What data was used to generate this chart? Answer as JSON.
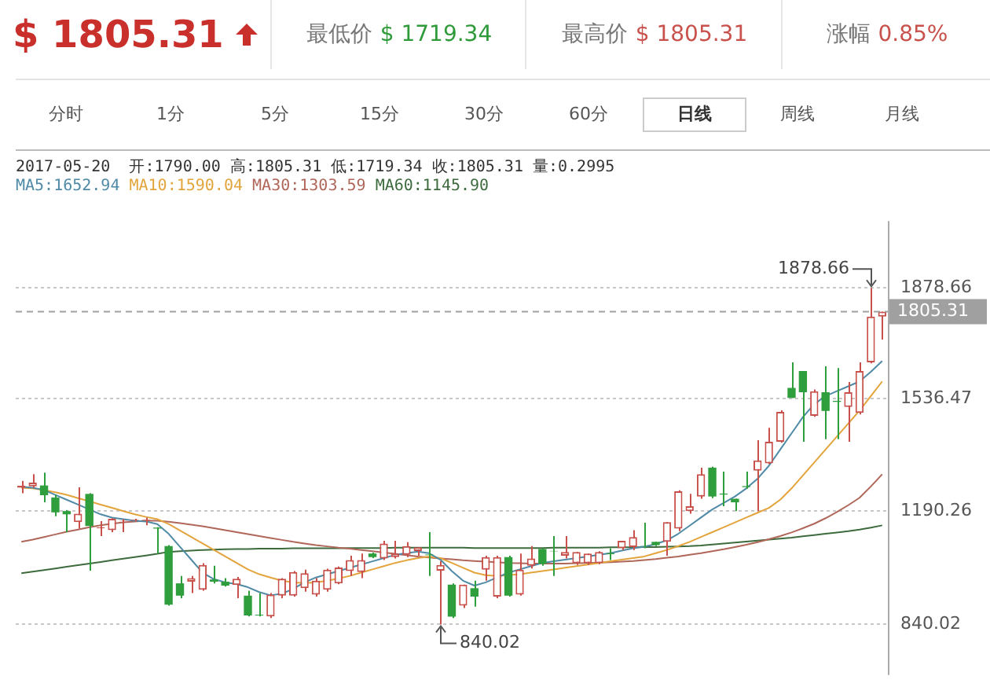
{
  "chart_data": {
    "type": "candlestick",
    "title": "$ 1805.31",
    "subtitle": "2017-05-20  开:1790.00 高:1805.31 低:1719.34 收:1805.31 量:0.2995",
    "annotations": [
      "最低价",
      "$ 1719.34",
      "最高价",
      "$ 1805.31",
      "涨幅",
      "0.85%",
      "分时",
      "1分",
      "5分",
      "15分",
      "30分",
      "60分",
      "日线",
      "周线",
      "月线",
      "1878.66",
      "840.02"
    ],
    "categories": [
      null,
      null,
      null,
      null,
      null,
      null,
      null,
      null,
      null,
      null,
      null,
      null,
      null,
      null,
      null,
      null,
      null,
      null,
      null,
      null,
      null,
      null,
      null,
      null,
      null,
      null,
      null,
      null,
      null,
      null,
      null,
      null,
      null,
      null,
      null,
      null,
      null,
      null,
      null,
      null,
      null,
      null,
      null,
      null,
      null,
      null,
      null,
      null,
      null,
      null,
      null,
      null,
      null,
      null,
      null,
      null,
      null,
      null,
      null,
      null,
      null,
      null,
      null,
      null,
      null,
      null,
      null,
      null,
      null,
      null,
      null,
      null,
      null,
      null,
      null,
      null,
      null
    ],
    "series": [
      {
        "ohlc": [
          [
            1262,
            1283,
            1245,
            1268
          ],
          [
            1266,
            1304,
            1262,
            1278
          ],
          [
            1269,
            1309,
            1217,
            1239
          ],
          [
            1232,
            1240,
            1174,
            1186
          ],
          [
            1190,
            1193,
            1125,
            1180
          ],
          [
            1156,
            1263,
            1136,
            1182
          ],
          [
            1243,
            1245,
            1006,
            1144
          ],
          [
            1137,
            1159,
            1113,
            1140
          ],
          [
            1131,
            1168,
            1125,
            1166
          ],
          [
            1160,
            1165,
            1125,
            1162
          ],
          [
            1161,
            1166,
            1158,
            1163
          ],
          [
            1160,
            1170,
            1146,
            1163
          ],
          [
            1139,
            1140,
            1059,
            1136
          ],
          [
            1082,
            1085,
            898,
            901
          ],
          [
            967,
            990,
            921,
            929
          ],
          [
            972,
            990,
            937,
            983
          ],
          [
            947,
            1029,
            944,
            1024
          ],
          [
            979,
            1021,
            967,
            972
          ],
          [
            972,
            983,
            957,
            960
          ],
          [
            962,
            987,
            921,
            981
          ],
          [
            929,
            944,
            865,
            868
          ],
          [
            870,
            937,
            865,
            868
          ],
          [
            865,
            937,
            860,
            932
          ],
          [
            929,
            983,
            921,
            981
          ],
          [
            929,
            1005,
            926,
            1002
          ],
          [
            952,
            1009,
            941,
            998
          ],
          [
            932,
            983,
            926,
            975
          ],
          [
            947,
            1012,
            941,
            1009
          ],
          [
            967,
            1019,
            964,
            1016
          ],
          [
            1005,
            1052,
            990,
            1039
          ],
          [
            1002,
            1059,
            983,
            1039
          ],
          [
            1059,
            1062,
            1045,
            1048
          ],
          [
            1044,
            1098,
            1039,
            1090
          ],
          [
            1048,
            1098,
            1044,
            1059
          ],
          [
            1055,
            1094,
            1048,
            1082
          ],
          [
            1067,
            1078,
            1052,
            1078
          ],
          [
            1056,
            1125,
            990,
            1054
          ],
          [
            1006,
            1036,
            840.02,
            1024
          ],
          [
            963,
            967,
            860,
            864
          ],
          [
            898,
            963,
            891,
            963
          ],
          [
            952,
            975,
            895,
            926
          ],
          [
            1009,
            1052,
            975,
            1048
          ],
          [
            926,
            1052,
            921,
            1048
          ],
          [
            1048,
            1052,
            926,
            929
          ],
          [
            932,
            1059,
            929,
            1009
          ],
          [
            1021,
            1082,
            1013,
            1044
          ],
          [
            1073,
            1075,
            1021,
            1027
          ],
          [
            1067,
            1113,
            990,
            1066
          ],
          [
            1052,
            1113,
            1044,
            1064
          ],
          [
            1029,
            1064,
            1024,
            1064
          ],
          [
            1029,
            1059,
            1024,
            1059
          ],
          [
            1029,
            1066,
            1026,
            1064
          ],
          [
            1060,
            1075,
            1039,
            1057
          ],
          [
            1075,
            1098,
            1070,
            1098
          ],
          [
            1079,
            1131,
            1070,
            1110
          ],
          [
            1083,
            1154,
            1075,
            1082
          ],
          [
            1095,
            1095,
            1082,
            1085
          ],
          [
            1095,
            1156,
            1052,
            1156
          ],
          [
            1136,
            1254,
            1128,
            1251
          ],
          [
            1190,
            1243,
            1182,
            1205
          ],
          [
            1235,
            1324,
            1228,
            1304
          ],
          [
            1324,
            1327,
            1230,
            1235
          ],
          [
            1244,
            1312,
            1205,
            1241
          ],
          [
            1228,
            1228,
            1190,
            1217
          ],
          [
            1267,
            1312,
            1259,
            1264
          ],
          [
            1315,
            1409,
            1190,
            1346
          ],
          [
            1337,
            1447,
            1335,
            1404
          ],
          [
            1404,
            1501,
            1401,
            1496
          ],
          [
            1570,
            1649,
            1539,
            1539
          ],
          [
            1622,
            1622,
            1404,
            1557
          ],
          [
            1484,
            1565,
            1481,
            1560
          ],
          [
            1557,
            1637,
            1412,
            1499
          ],
          [
            1530,
            1631,
            1412,
            1527
          ],
          [
            1511,
            1588,
            1404,
            1557
          ],
          [
            1493,
            1649,
            1488,
            1622
          ],
          [
            1649,
            1878.66,
            1646,
            1790
          ],
          [
            1790,
            1805.31,
            1719.34,
            1805.31
          ]
        ],
        "colors": [
          "#c9514c",
          "#c9514c",
          "#2f9e3c",
          "#2f9e3c",
          "#2f9e3c",
          "#c9514c",
          "#2f9e3c",
          "#c9514c",
          "#c9514c",
          "#c9514c",
          "#c9514c",
          "#c9514c",
          "#2f9e3c",
          "#2f9e3c",
          "#2f9e3c",
          "#c9514c",
          "#c9514c",
          "#2f9e3c",
          "#2f9e3c",
          "#c9514c",
          "#2f9e3c",
          "#2f9e3c",
          "#c9514c",
          "#c9514c",
          "#c9514c",
          "#c9514c",
          "#c9514c",
          "#c9514c",
          "#c9514c",
          "#c9514c",
          "#c9514c",
          "#2f9e3c",
          "#c9514c",
          "#c9514c",
          "#c9514c",
          "#c9514c",
          "#2f9e3c",
          "#c9514c",
          "#2f9e3c",
          "#c9514c",
          "#2f9e3c",
          "#c9514c",
          "#c9514c",
          "#2f9e3c",
          "#c9514c",
          "#c9514c",
          "#2f9e3c",
          "#2f9e3c",
          "#c9514c",
          "#c9514c",
          "#c9514c",
          "#c9514c",
          "#2f9e3c",
          "#c9514c",
          "#c9514c",
          "#2f9e3c",
          "#2f9e3c",
          "#c9514c",
          "#c9514c",
          "#c9514c",
          "#c9514c",
          "#2f9e3c",
          "#2f9e3c",
          "#2f9e3c",
          "#2f9e3c",
          "#c9514c",
          "#c9514c",
          "#c9514c",
          "#2f9e3c",
          "#2f9e3c",
          "#c9514c",
          "#2f9e3c",
          "#2f9e3c",
          "#c9514c",
          "#c9514c",
          "#c9514c",
          "#c9514c"
        ]
      },
      {
        "type": "line",
        "name": "MA5:1652.94",
        "color": "#4f8aa6",
        "values": [
          1265,
          1262,
          1255,
          1240,
          1225,
          1210,
          1195,
          1180,
          1170,
          1165,
          1160,
          1158,
          1150,
          1120,
          1080,
          1040,
          1000,
          980,
          970,
          965,
          955,
          940,
          930,
          935,
          950,
          970,
          985,
          995,
          1005,
          1015,
          1025,
          1035,
          1045,
          1055,
          1060,
          1065,
          1060,
          1040,
          1005,
          975,
          960,
          970,
          985,
          1000,
          1010,
          1020,
          1030,
          1035,
          1040,
          1045,
          1050,
          1055,
          1060,
          1068,
          1075,
          1080,
          1088,
          1100,
          1120,
          1145,
          1170,
          1195,
          1215,
          1235,
          1260,
          1290,
          1330,
          1380,
          1430,
          1480,
          1520,
          1545,
          1560,
          1575,
          1590,
          1620,
          1652.94
        ]
      },
      {
        "type": "line",
        "name": "MA10:1590.04",
        "color": "#e3a43c",
        "values": [
          1262,
          1260,
          1255,
          1248,
          1240,
          1230,
          1220,
          1210,
          1200,
          1190,
          1180,
          1172,
          1165,
          1150,
          1130,
          1110,
          1090,
          1070,
          1050,
          1030,
          1010,
          995,
          985,
          975,
          970,
          968,
          970,
          975,
          982,
          990,
          1000,
          1010,
          1020,
          1030,
          1038,
          1045,
          1050,
          1045,
          1030,
          1015,
          1000,
          992,
          990,
          992,
          995,
          1000,
          1005,
          1010,
          1015,
          1020,
          1025,
          1030,
          1035,
          1040,
          1045,
          1050,
          1060,
          1070,
          1082,
          1095,
          1110,
          1125,
          1140,
          1155,
          1170,
          1185,
          1200,
          1225,
          1260,
          1300,
          1340,
          1380,
          1420,
          1460,
          1500,
          1545,
          1590.04
        ]
      },
      {
        "type": "line",
        "name": "MA30:1303.59",
        "color": "#b0675a",
        "values": [
          1095,
          1102,
          1110,
          1118,
          1126,
          1133,
          1140,
          1146,
          1151,
          1155,
          1158,
          1160,
          1160,
          1157,
          1153,
          1148,
          1143,
          1137,
          1131,
          1125,
          1119,
          1113,
          1107,
          1101,
          1095,
          1090,
          1085,
          1081,
          1077,
          1074,
          1070,
          1066,
          1062,
          1058,
          1054,
          1050,
          1047,
          1044,
          1041,
          1038,
          1036,
          1034,
          1032,
          1030,
          1029,
          1028,
          1028,
          1028,
          1028,
          1029,
          1030,
          1031,
          1032,
          1034,
          1036,
          1039,
          1042,
          1046,
          1050,
          1055,
          1060,
          1066,
          1072,
          1079,
          1086,
          1094,
          1103,
          1113,
          1124,
          1137,
          1151,
          1168,
          1187,
          1208,
          1231,
          1266,
          1303.59
        ]
      },
      {
        "type": "line",
        "name": "MA60:1145.90",
        "color": "#3d6b3d",
        "values": [
          998,
          1003,
          1008,
          1013,
          1018,
          1023,
          1028,
          1033,
          1038,
          1043,
          1048,
          1053,
          1058,
          1064,
          1066,
          1068,
          1070,
          1071,
          1072,
          1073,
          1073,
          1074,
          1074,
          1074,
          1075,
          1075,
          1075,
          1075,
          1075,
          1076,
          1076,
          1076,
          1076,
          1077,
          1077,
          1077,
          1077,
          1077,
          1077,
          1077,
          1076,
          1076,
          1076,
          1076,
          1076,
          1076,
          1076,
          1077,
          1077,
          1077,
          1077,
          1077,
          1078,
          1078,
          1078,
          1079,
          1079,
          1080,
          1081,
          1082,
          1084,
          1087,
          1090,
          1093,
          1096,
          1099,
          1102,
          1105,
          1108,
          1112,
          1116,
          1120,
          1124,
          1128,
          1133,
          1139,
          1145.9
        ]
      }
    ],
    "ylim": [
      684,
      2085
    ],
    "yticks": [
      840.02,
      1190.26,
      1536.47,
      1878.66
    ],
    "ref_lines": [
      {
        "axis": "y",
        "value": 1805.31,
        "label": "1805.31",
        "color": "#a0a0a0",
        "line_style": "dashed"
      }
    ],
    "grid": "y",
    "legend": "top left",
    "tick_labels": "y"
  }
}
